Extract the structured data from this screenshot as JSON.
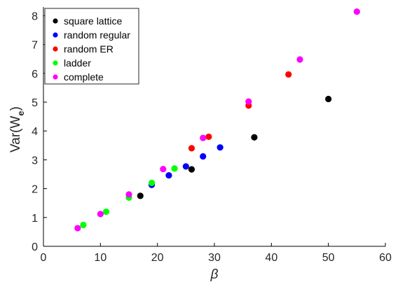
{
  "chart_data": {
    "type": "scatter",
    "xlabel": "β",
    "ylabel_main": "Var(W",
    "ylabel_sub": "e",
    "ylabel_close": ")",
    "xlim": [
      0,
      60
    ],
    "ylim": [
      0,
      8.3
    ],
    "xticks": [
      "0",
      "10",
      "20",
      "30",
      "40",
      "50",
      "60"
    ],
    "yticks": [
      "0",
      "1",
      "2",
      "3",
      "4",
      "5",
      "6",
      "7",
      "8"
    ],
    "legend_position": "top-left",
    "grid": false,
    "series": [
      {
        "name": "square lattice",
        "color": "#000000",
        "points": [
          [
            17,
            1.75
          ],
          [
            26,
            2.67
          ],
          [
            37,
            3.78
          ],
          [
            50,
            5.11
          ]
        ]
      },
      {
        "name": "random regular",
        "color": "#0000ff",
        "points": [
          [
            19,
            2.13
          ],
          [
            22,
            2.46
          ],
          [
            25,
            2.77
          ],
          [
            28,
            3.12
          ],
          [
            31,
            3.43
          ]
        ]
      },
      {
        "name": "random ER",
        "color": "#ff0000",
        "points": [
          [
            26,
            3.4
          ],
          [
            29,
            3.8
          ],
          [
            36,
            4.88
          ],
          [
            43,
            5.96
          ]
        ]
      },
      {
        "name": "ladder",
        "color": "#00ff00",
        "points": [
          [
            7,
            0.74
          ],
          [
            11,
            1.2
          ],
          [
            15,
            1.69
          ],
          [
            19,
            2.2
          ],
          [
            23,
            2.7
          ]
        ]
      },
      {
        "name": "complete",
        "color": "#ff00ff",
        "points": [
          [
            6,
            0.63
          ],
          [
            10,
            1.12
          ],
          [
            15,
            1.8
          ],
          [
            21,
            2.68
          ],
          [
            28,
            3.76
          ],
          [
            36,
            5.02
          ],
          [
            45,
            6.48
          ],
          [
            55,
            8.14
          ]
        ]
      }
    ]
  }
}
